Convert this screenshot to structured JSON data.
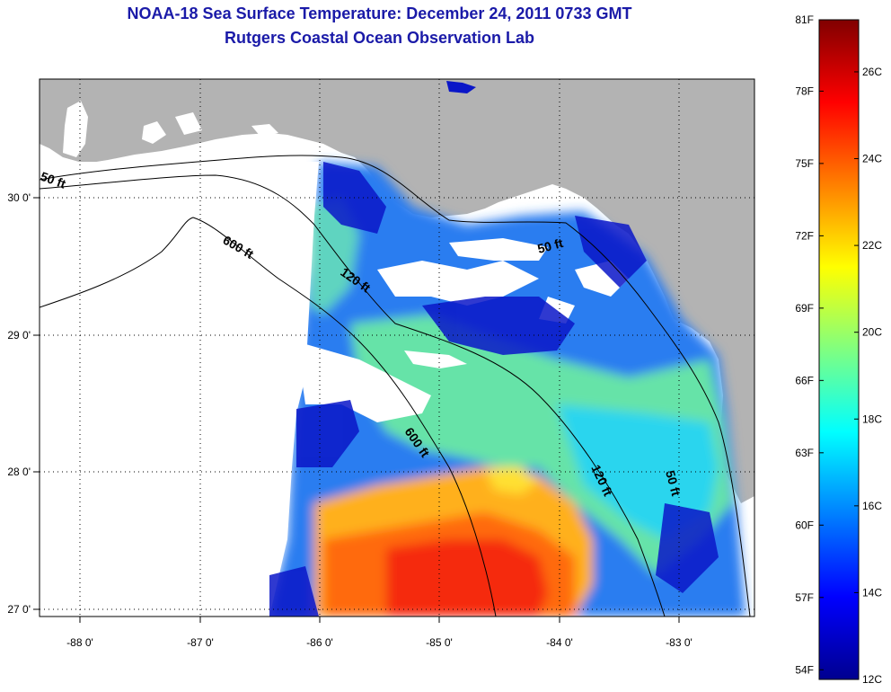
{
  "header": {
    "title": "NOAA-18 Sea Surface Temperature:  December 24, 2011 0733 GMT",
    "subtitle": "Rutgers Coastal Ocean Observation Lab"
  },
  "axes": {
    "lon_ticks": [
      "-88 0'",
      "-87 0'",
      "-86 0'",
      "-85 0'",
      "-84 0'",
      "-83 0'"
    ],
    "lat_ticks": [
      "30 0'",
      "29 0'",
      "28 0'",
      "27 0'"
    ],
    "lon_range": [
      -88.33,
      -82.4
    ],
    "lat_range": [
      26.95,
      30.9
    ]
  },
  "contours": {
    "labels": [
      "50 ft",
      "600 ft",
      "120 ft",
      "50 ft",
      "600 ft",
      "120 ft",
      "50 ft"
    ]
  },
  "colorbar": {
    "f_labels": [
      "81F",
      "78F",
      "75F",
      "72F",
      "69F",
      "66F",
      "63F",
      "60F",
      "57F",
      "54F"
    ],
    "c_labels": [
      "26C",
      "24C",
      "22C",
      "20C",
      "18C",
      "16C",
      "14C",
      "12C"
    ],
    "colormap": "jet",
    "range_c": [
      12,
      27.2
    ]
  },
  "colors": {
    "land": "#b3b3b3",
    "title": "#1a1aa8",
    "no_data": "#ffffff"
  }
}
